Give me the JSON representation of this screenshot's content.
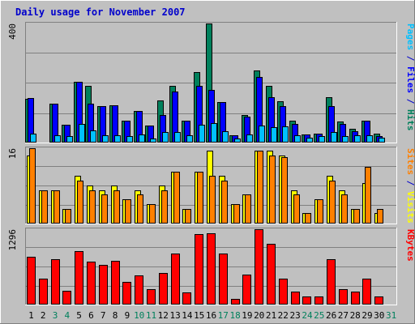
{
  "title": "Daily usage for November 2007",
  "colors": {
    "background": "#c0c0c0",
    "panel_bg": "#c0c0c0",
    "title": "#0000cc",
    "hits": "#00805c",
    "files": "#0000ff",
    "pages": "#00c0ff",
    "visits": "#ffff00",
    "sites": "#ff8000",
    "kbytes": "#ff0000",
    "weekend_label": "#00805c"
  },
  "chart_data": [
    {
      "type": "bar",
      "name": "hits-files-pages",
      "ymax_label": "400",
      "ymax": 400,
      "right_label_parts": [
        {
          "text": "Pages",
          "color_key": "pages"
        },
        {
          "text": " / ",
          "color_key": "title"
        },
        {
          "text": "Files",
          "color_key": "files"
        },
        {
          "text": " / ",
          "color_key": "title"
        },
        {
          "text": "Hits",
          "color_key": "hits"
        }
      ],
      "series": [
        {
          "name": "Hits",
          "color_key": "hits",
          "values": [
            145,
            0,
            130,
            58,
            202,
            188,
            120,
            123,
            70,
            105,
            55,
            140,
            190,
            70,
            236,
            400,
            135,
            22,
            90,
            240,
            188,
            138,
            70,
            25,
            28,
            150,
            68,
            43,
            72,
            28,
            0
          ]
        },
        {
          "name": "Files",
          "color_key": "files",
          "values": [
            148,
            0,
            130,
            58,
            202,
            130,
            120,
            123,
            70,
            105,
            55,
            90,
            170,
            70,
            190,
            175,
            135,
            22,
            85,
            220,
            150,
            120,
            60,
            25,
            28,
            120,
            60,
            35,
            72,
            20,
            0
          ]
        },
        {
          "name": "Pages",
          "color_key": "pages",
          "values": [
            28,
            0,
            22,
            18,
            60,
            38,
            22,
            22,
            18,
            25,
            12,
            32,
            32,
            22,
            58,
            62,
            35,
            12,
            25,
            55,
            48,
            52,
            22,
            15,
            20,
            32,
            20,
            22,
            22,
            15,
            0
          ]
        }
      ]
    },
    {
      "type": "bar",
      "name": "visits-sites",
      "ymax_label": "16",
      "ymax": 16,
      "right_label_parts": [
        {
          "text": "Sites",
          "color_key": "sites"
        },
        {
          "text": " / ",
          "color_key": "title"
        },
        {
          "text": "Visits",
          "color_key": "visits"
        }
      ],
      "series": [
        {
          "name": "Visits",
          "color_key": "visits",
          "values": [
            14.5,
            7,
            7,
            3,
            10,
            8,
            7,
            8,
            5,
            7,
            4,
            8,
            11,
            3,
            11,
            15.5,
            10,
            4,
            6,
            15.5,
            15.5,
            14.5,
            7,
            2,
            5,
            10,
            7,
            3,
            8.5,
            2,
            0
          ]
        },
        {
          "name": "Sites",
          "color_key": "sites",
          "values": [
            16,
            7,
            7,
            3,
            9,
            7,
            6,
            7,
            5,
            6,
            4,
            7,
            11,
            3,
            11,
            10,
            9,
            4,
            6,
            15.5,
            14.5,
            14,
            6,
            2,
            5,
            9,
            6,
            3,
            12,
            3,
            0
          ]
        }
      ]
    },
    {
      "type": "bar",
      "name": "kbytes",
      "ymax_label": "1296",
      "ymax": 1296,
      "right_label_parts": [
        {
          "text": "KBytes",
          "color_key": "kbytes"
        }
      ],
      "series": [
        {
          "name": "KBytes",
          "color_key": "kbytes",
          "values": [
            820,
            440,
            770,
            230,
            910,
            730,
            670,
            750,
            380,
            490,
            260,
            530,
            880,
            200,
            1205,
            1230,
            880,
            90,
            510,
            1296,
            1040,
            440,
            210,
            130,
            130,
            770,
            260,
            210,
            430,
            130,
            0
          ]
        }
      ]
    }
  ],
  "days": [
    "1",
    "2",
    "3",
    "4",
    "5",
    "6",
    "7",
    "8",
    "9",
    "10",
    "11",
    "12",
    "13",
    "14",
    "15",
    "16",
    "17",
    "18",
    "19",
    "20",
    "21",
    "22",
    "23",
    "24",
    "25",
    "26",
    "27",
    "28",
    "29",
    "30",
    "31"
  ],
  "weekend_days": [
    3,
    4,
    10,
    11,
    17,
    18,
    24,
    25,
    31
  ]
}
